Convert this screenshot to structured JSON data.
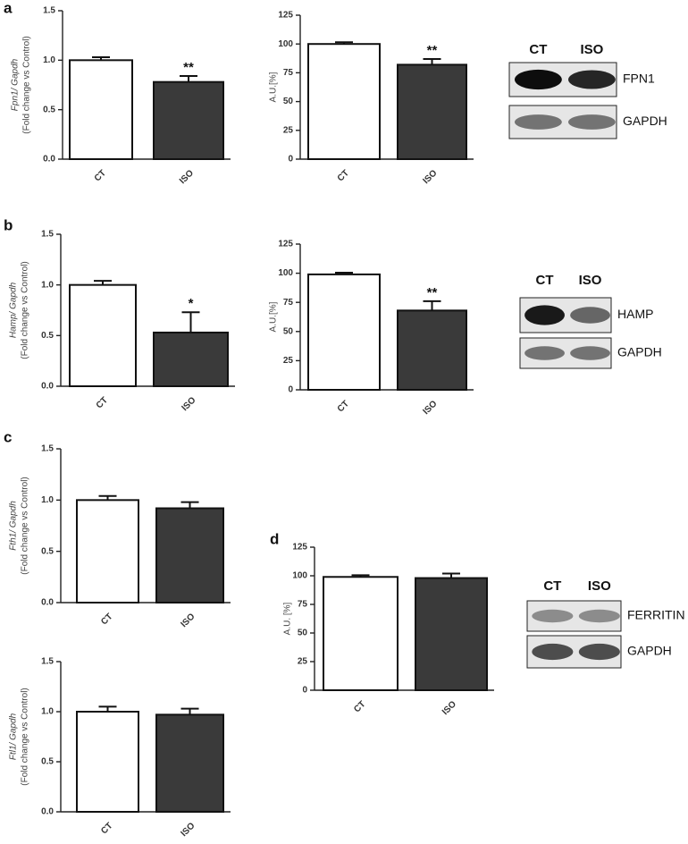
{
  "panel_labels": [
    "a",
    "b",
    "c",
    "d"
  ],
  "chart_data": [
    {
      "type": "bar",
      "ylabel": [
        "Fpn1/ Gapdh",
        "(Fold change vs Control)"
      ],
      "categories": [
        "CT",
        "ISO"
      ],
      "values": [
        1.0,
        0.78
      ],
      "errors": [
        0.03,
        0.06
      ],
      "annotations": [
        null,
        "**"
      ],
      "colors": [
        "#ffffff",
        "#3a3a3a"
      ],
      "ylim": [
        0,
        1.5
      ],
      "yticks": [
        {
          "value": 0,
          "label": "0.0"
        },
        0.5,
        {
          "value": 1,
          "label": "1.0"
        },
        1.5
      ]
    },
    {
      "type": "bar",
      "ylabel": [
        "A.U.[%]"
      ],
      "categories": [
        "CT",
        "ISO"
      ],
      "values": [
        100,
        82
      ],
      "errors": [
        1.5,
        5
      ],
      "annotations": [
        null,
        "**"
      ],
      "colors": [
        "#ffffff",
        "#3a3a3a"
      ],
      "ylim": [
        0,
        125
      ],
      "yticks": [
        0,
        25,
        50,
        75,
        100,
        125
      ]
    },
    {
      "type": "bar",
      "ylabel": [
        "Hamp/ Gapdh",
        "(Fold change vs Control)"
      ],
      "categories": [
        "CT",
        "ISO"
      ],
      "values": [
        1.0,
        0.53
      ],
      "errors": [
        0.04,
        0.2
      ],
      "annotations": [
        null,
        "*"
      ],
      "colors": [
        "#ffffff",
        "#3a3a3a"
      ],
      "ylim": [
        0,
        1.5
      ],
      "yticks": [
        {
          "value": 0,
          "label": "0.0"
        },
        0.5,
        {
          "value": 1,
          "label": "1.0"
        },
        1.5
      ]
    },
    {
      "type": "bar",
      "ylabel": [
        "A.U.[%]"
      ],
      "categories": [
        "CT",
        "ISO"
      ],
      "values": [
        99,
        68
      ],
      "errors": [
        1.5,
        8
      ],
      "annotations": [
        null,
        "**"
      ],
      "colors": [
        "#ffffff",
        "#3a3a3a"
      ],
      "ylim": [
        0,
        125
      ],
      "yticks": [
        0,
        25,
        50,
        75,
        100,
        125
      ]
    },
    {
      "type": "bar",
      "ylabel": [
        "Fth1/ Gapdh",
        "(Fold change vs Control)"
      ],
      "categories": [
        "CT",
        "ISO"
      ],
      "values": [
        1.0,
        0.92
      ],
      "errors": [
        0.04,
        0.06
      ],
      "colors": [
        "#ffffff",
        "#3a3a3a"
      ],
      "ylim": [
        0,
        1.5
      ],
      "yticks": [
        {
          "value": 0,
          "label": "0.0"
        },
        0.5,
        {
          "value": 1,
          "label": "1.0"
        },
        1.5
      ]
    },
    {
      "type": "bar",
      "ylabel": [
        "Ftl1/ Gapdh",
        "(Fold change vs Control)"
      ],
      "categories": [
        "CT",
        "ISO"
      ],
      "values": [
        1.0,
        0.97
      ],
      "errors": [
        0.05,
        0.06
      ],
      "colors": [
        "#ffffff",
        "#3a3a3a"
      ],
      "ylim": [
        0,
        1.5
      ],
      "yticks": [
        {
          "value": 0,
          "label": "0.0"
        },
        0.5,
        {
          "value": 1,
          "label": "1.0"
        },
        1.5
      ]
    },
    {
      "type": "bar",
      "ylabel": [
        "A.U. [%]"
      ],
      "categories": [
        "CT",
        "ISO"
      ],
      "values": [
        99,
        98
      ],
      "errors": [
        1.5,
        4
      ],
      "colors": [
        "#ffffff",
        "#3a3a3a"
      ],
      "ylim": [
        0,
        125
      ],
      "yticks": [
        0,
        25,
        50,
        75,
        100,
        125
      ]
    }
  ],
  "blots": [
    {
      "lanes": [
        "CT",
        "ISO"
      ],
      "bands": [
        "FPN1",
        "GAPDH"
      ]
    },
    {
      "lanes": [
        "CT",
        "ISO"
      ],
      "bands": [
        "HAMP",
        "GAPDH"
      ]
    },
    {
      "lanes": [
        "CT",
        "ISO"
      ],
      "bands": [
        "FERRITIN",
        "GAPDH"
      ]
    }
  ]
}
